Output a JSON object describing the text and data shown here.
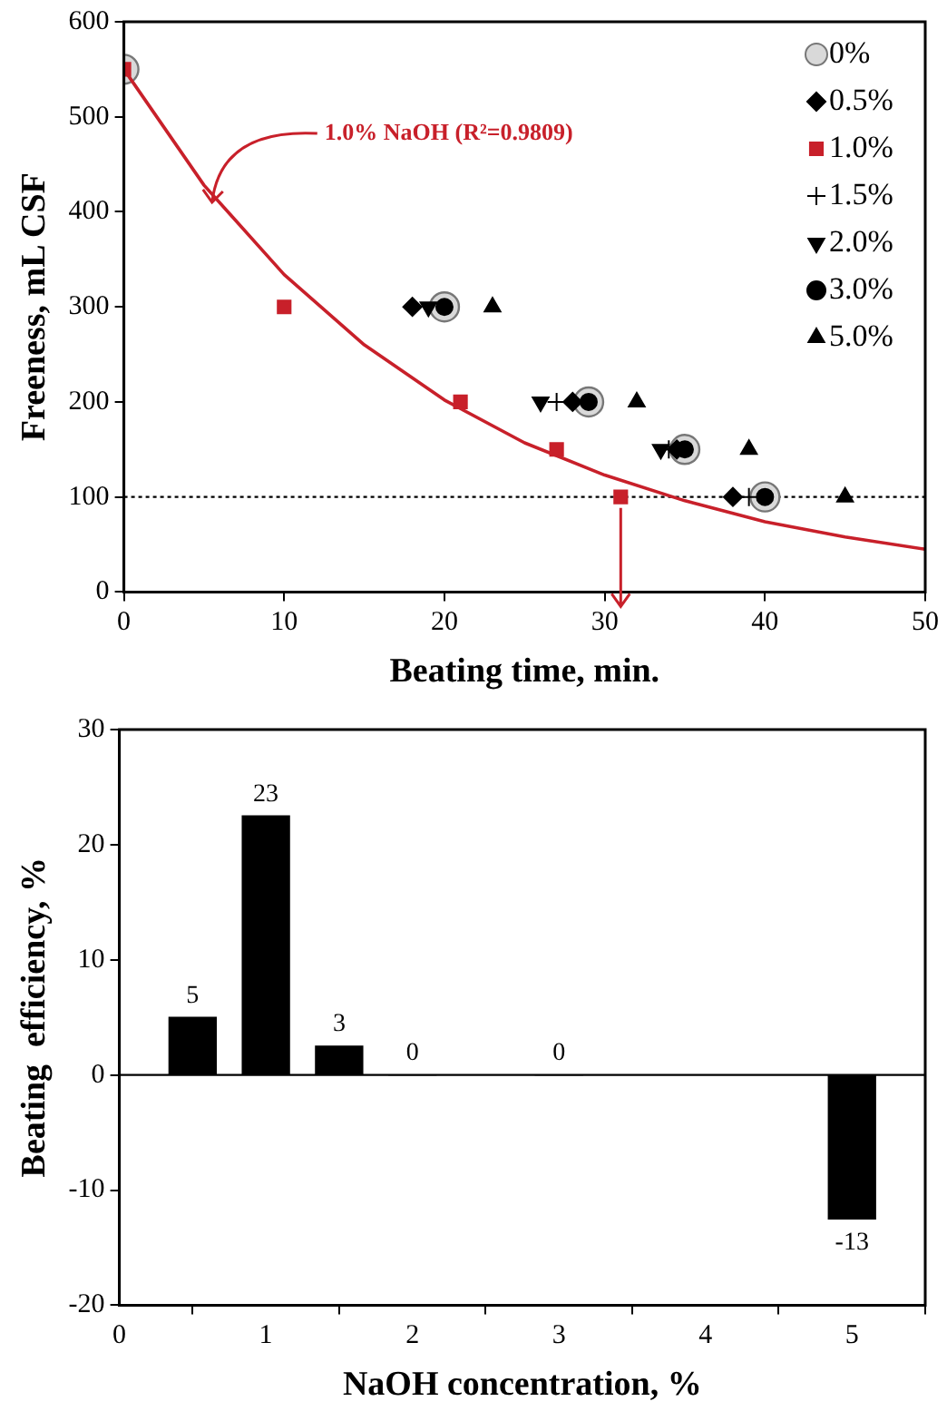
{
  "chart_data": [
    {
      "type": "scatter",
      "xlabel": "Beating time, min.",
      "ylabel": "Freeness, mL CSF",
      "xlim": [
        0,
        50
      ],
      "xticks": [
        0,
        10,
        20,
        30,
        40,
        50
      ],
      "ylim": [
        0,
        600
      ],
      "yticks": [
        0,
        100,
        200,
        300,
        400,
        500,
        600
      ],
      "legend": "top right",
      "grid": false,
      "ref_lines": [
        {
          "axis": "y",
          "value": 100,
          "color": "#000000",
          "line_style": "dotted"
        }
      ],
      "annotations": [
        {
          "text": "1.0% NaOH (R²=0.9809)",
          "x": 5.5,
          "y": 410
        }
      ],
      "series": [
        {
          "name": "0%",
          "color": "#d9d9d9",
          "marker": "circle",
          "x": [
            0,
            20,
            29,
            35,
            40
          ],
          "values": [
            550,
            300,
            200,
            150,
            100
          ]
        },
        {
          "name": "0.5%",
          "color": "#000000",
          "marker": "diamond",
          "x": [
            18,
            28,
            34.5,
            38
          ],
          "values": [
            300,
            200,
            150,
            100
          ]
        },
        {
          "name": "1.0%",
          "color": "#c8202a",
          "marker": "square",
          "x": [
            0,
            10,
            21,
            27,
            31
          ],
          "values": [
            550,
            300,
            200,
            150,
            100
          ]
        },
        {
          "name": "1.5%",
          "color": "#000000",
          "marker": "cross",
          "x": [
            27,
            34,
            39
          ],
          "values": [
            200,
            150,
            100
          ]
        },
        {
          "name": "2.0%",
          "color": "#000000",
          "marker": "triangle-down",
          "x": [
            19,
            26,
            33.5
          ],
          "values": [
            300,
            200,
            150
          ]
        },
        {
          "name": "3.0%",
          "color": "#000000",
          "marker": "circle",
          "x": [
            20,
            29,
            35,
            40
          ],
          "values": [
            300,
            200,
            150,
            100
          ]
        },
        {
          "name": "5.0%",
          "color": "#000000",
          "marker": "triangle",
          "x": [
            23,
            32,
            39,
            45
          ],
          "values": [
            300,
            200,
            150,
            100
          ]
        },
        {
          "type": "line",
          "color": "#c8202a",
          "marker": "none",
          "x": [
            0,
            5,
            10,
            15,
            20,
            25,
            30,
            35,
            40,
            45,
            50
          ],
          "values": [
            550,
            428,
            334,
            260,
            202,
            157,
            123,
            96,
            74,
            58,
            45
          ]
        }
      ]
    },
    {
      "type": "bar",
      "xlabel": "NaOH concentration, %",
      "ylabel": "Beating  efficiency, %",
      "xlim": [
        0,
        5.5
      ],
      "xticks": [
        0,
        1,
        2,
        3,
        4,
        5
      ],
      "ylim": [
        -20,
        30
      ],
      "yticks": [
        -20,
        -10,
        0,
        10,
        20,
        30
      ],
      "grid": false,
      "color": "#000000",
      "ref_lines": [
        {
          "axis": "y",
          "value": 0,
          "color": "#000000"
        }
      ],
      "x": [
        0.5,
        1,
        1.5,
        2,
        3,
        5
      ],
      "values": [
        5,
        22.5,
        2.5,
        0,
        0,
        -12.5
      ],
      "value_labels": [
        "5",
        "23",
        "3",
        "0",
        "0",
        "-13"
      ]
    }
  ]
}
